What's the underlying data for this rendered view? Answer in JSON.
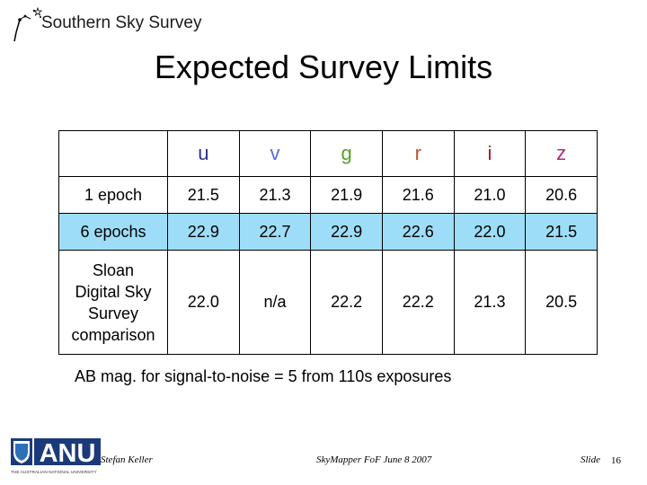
{
  "header": {
    "title": "Southern Sky Survey"
  },
  "slide": {
    "title": "Expected Survey Limits"
  },
  "colors": {
    "u": "#2f2f8f",
    "v": "#5a6ad6",
    "g": "#5aa02a",
    "r": "#c0562a",
    "i": "#b0182a",
    "z": "#b02a78",
    "highlight_row": "#9eddf7"
  },
  "table": {
    "columns": [
      "u",
      "v",
      "g",
      "r",
      "i",
      "z"
    ],
    "rows": [
      {
        "label": "1 epoch",
        "values": [
          "21.5",
          "21.3",
          "21.9",
          "21.6",
          "21.0",
          "20.6"
        ]
      },
      {
        "label": "6 epochs",
        "values": [
          "22.9",
          "22.7",
          "22.9",
          "22.6",
          "22.0",
          "21.5"
        ]
      },
      {
        "label_lines": [
          "Sloan",
          "Digital Sky",
          "Survey",
          "comparison"
        ],
        "values": [
          "22.0",
          "n/a",
          "22.2",
          "22.2",
          "21.3",
          "20.5"
        ]
      }
    ]
  },
  "footnote": "AB mag. for signal-to-noise = 5 from 110s exposures",
  "footer": {
    "author": "Stefan Keller",
    "event": "SkyMapper FoF June 8 2007",
    "slide_label": "Slide",
    "slide_number": "16"
  },
  "logo": {
    "text": "ANU",
    "subtitle": "THE AUSTRALIAN NATIONAL UNIVERSITY"
  }
}
